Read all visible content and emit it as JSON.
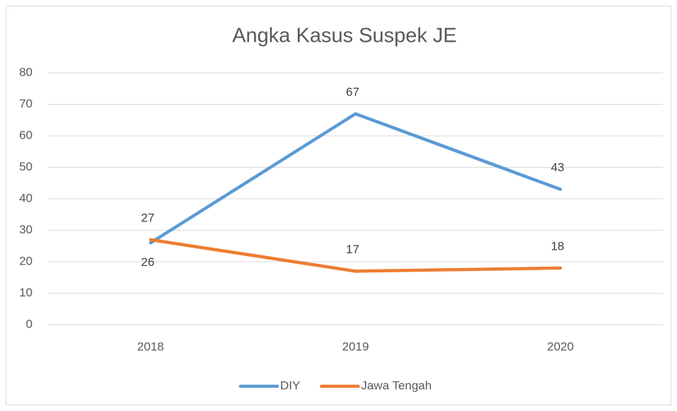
{
  "chart_data": {
    "type": "line",
    "title": "Angka Kasus Suspek JE",
    "categories": [
      "2018",
      "2019",
      "2020"
    ],
    "series": [
      {
        "name": "DIY",
        "color": "#5b9bd5",
        "values": [
          26,
          67,
          43
        ]
      },
      {
        "name": "Jawa Tengah",
        "color": "#ed7d31",
        "values": [
          27,
          17,
          18
        ]
      }
    ],
    "ylim": [
      0,
      80
    ],
    "yticks": [
      0,
      10,
      20,
      30,
      40,
      50,
      60,
      70,
      80
    ],
    "grid": true,
    "legend": "bottom"
  }
}
